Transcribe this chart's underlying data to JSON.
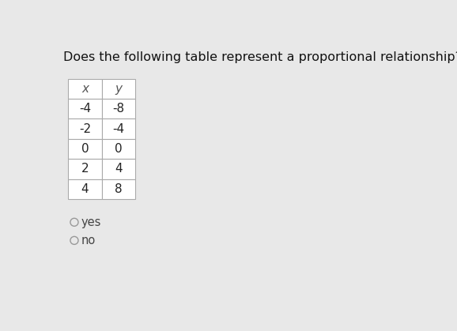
{
  "title": "Does the following table represent a proportional relationship?",
  "col_headers": [
    "x",
    "y"
  ],
  "rows": [
    [
      "-4",
      "-8"
    ],
    [
      "-2",
      "-4"
    ],
    [
      "0",
      "0"
    ],
    [
      "2",
      "4"
    ],
    [
      "4",
      "8"
    ]
  ],
  "options": [
    "yes",
    "no"
  ],
  "bg_color": "#e8e8e8",
  "table_bg": "#ffffff",
  "border_color": "#aaaaaa",
  "header_text_color": "#555555",
  "cell_text_color": "#222222",
  "title_color": "#111111",
  "option_color": "#444444",
  "title_fontsize": 11.5,
  "cell_fontsize": 11,
  "option_fontsize": 10.5
}
